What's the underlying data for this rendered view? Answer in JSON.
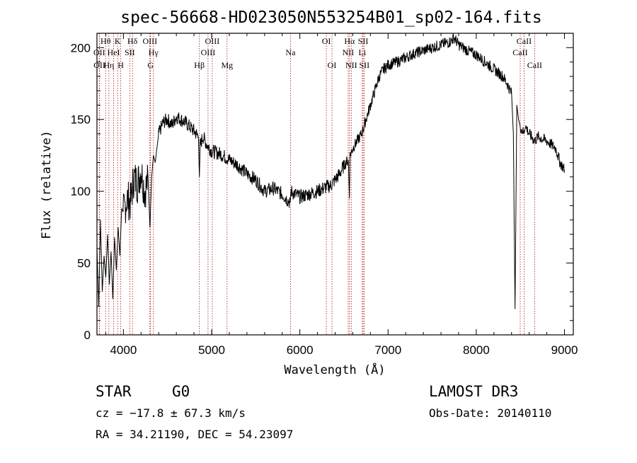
{
  "chart_data": {
    "type": "line",
    "title": "spec-56668-HD023050N553254B01_sp02-164.fits",
    "xlabel": "Wavelength (Å)",
    "ylabel": "Flux (relative)",
    "xlim": [
      3700,
      9100
    ],
    "ylim": [
      0,
      210
    ],
    "x_ticks": [
      4000,
      5000,
      6000,
      7000,
      8000,
      9000
    ],
    "y_ticks": [
      0,
      50,
      100,
      150,
      200
    ],
    "series": [
      {
        "name": "flux",
        "x": [
          3700,
          3720,
          3740,
          3760,
          3780,
          3800,
          3820,
          3840,
          3860,
          3880,
          3900,
          3920,
          3940,
          3960,
          3980,
          4000,
          4040,
          4080,
          4120,
          4160,
          4200,
          4240,
          4280,
          4300,
          4320,
          4340,
          4360,
          4380,
          4400,
          4450,
          4500,
          4550,
          4600,
          4700,
          4800,
          4850,
          4861,
          4870,
          4900,
          4950,
          5000,
          5100,
          5200,
          5300,
          5400,
          5500,
          5550,
          5600,
          5700,
          5800,
          5890,
          5900,
          6000,
          6100,
          6200,
          6300,
          6350,
          6400,
          6450,
          6500,
          6550,
          6562,
          6570,
          6600,
          6650,
          6700,
          6750,
          6800,
          6850,
          6900,
          6950,
          7000,
          7100,
          7200,
          7300,
          7400,
          7500,
          7600,
          7700,
          7750,
          7800,
          7900,
          8000,
          8100,
          8200,
          8300,
          8350,
          8400,
          8420,
          8440,
          8460,
          8480,
          8500,
          8542,
          8560,
          8600,
          8662,
          8700,
          8800,
          8900,
          8950,
          9000
        ],
        "y": [
          60,
          20,
          80,
          30,
          55,
          40,
          70,
          35,
          58,
          25,
          68,
          45,
          75,
          55,
          88,
          85,
          95,
          92,
          110,
          105,
          115,
          100,
          108,
          75,
          110,
          125,
          120,
          130,
          140,
          148,
          150,
          146,
          152,
          148,
          142,
          138,
          110,
          132,
          138,
          132,
          128,
          126,
          122,
          118,
          112,
          108,
          104,
          100,
          102,
          98,
          92,
          100,
          96,
          98,
          100,
          103,
          104,
          108,
          112,
          118,
          122,
          95,
          125,
          130,
          135,
          140,
          150,
          160,
          170,
          180,
          185,
          188,
          190,
          193,
          196,
          198,
          200,
          202,
          204,
          207,
          202,
          198,
          195,
          190,
          185,
          180,
          175,
          168,
          140,
          18,
          160,
          150,
          145,
          140,
          145,
          140,
          135,
          138,
          135,
          130,
          120,
          115
        ],
        "color": "#000000"
      }
    ],
    "line_markers": [
      {
        "label": "Hθ",
        "wavelength": 3798
      },
      {
        "label": "OII",
        "wavelength": 3727
      },
      {
        "label": "OII",
        "wavelength": 3729
      },
      {
        "label": "Hη",
        "wavelength": 3835
      },
      {
        "label": "HeI",
        "wavelength": 3889
      },
      {
        "label": "K",
        "wavelength": 3934
      },
      {
        "label": "H",
        "wavelength": 3969
      },
      {
        "label": "SII",
        "wavelength": 4072
      },
      {
        "label": "Hδ",
        "wavelength": 4102
      },
      {
        "label": "OIII",
        "wavelength": 4300
      },
      {
        "label": "Hγ",
        "wavelength": 4340
      },
      {
        "label": "G",
        "wavelength": 4307
      },
      {
        "label": "Hβ",
        "wavelength": 4861
      },
      {
        "label": "OIII",
        "wavelength": 4959
      },
      {
        "label": "OIII",
        "wavelength": 5007
      },
      {
        "label": "Mg",
        "wavelength": 5175
      },
      {
        "label": "Na",
        "wavelength": 5894
      },
      {
        "label": "OI",
        "wavelength": 6300
      },
      {
        "label": "OI",
        "wavelength": 6364
      },
      {
        "label": "Hα",
        "wavelength": 6563
      },
      {
        "label": "NII",
        "wavelength": 6548
      },
      {
        "label": "NII",
        "wavelength": 6583
      },
      {
        "label": "SII",
        "wavelength": 6717
      },
      {
        "label": "Li",
        "wavelength": 6708
      },
      {
        "label": "SII",
        "wavelength": 6731
      },
      {
        "label": "CaII",
        "wavelength": 8498
      },
      {
        "label": "CaII",
        "wavelength": 8542
      },
      {
        "label": "CaII",
        "wavelength": 8662
      }
    ],
    "grid": false,
    "legend": "none"
  },
  "footer": {
    "class_label": "STAR",
    "subclass": "G0",
    "survey": "LAMOST DR3",
    "cz": "cz = −17.8 ± 67.3 km/s",
    "obs_date": "Obs-Date: 20140110",
    "radec": "RA =  34.21190, DEC =  54.23097"
  },
  "colors": {
    "line_marker": "#b01010",
    "spectrum": "#000000"
  }
}
